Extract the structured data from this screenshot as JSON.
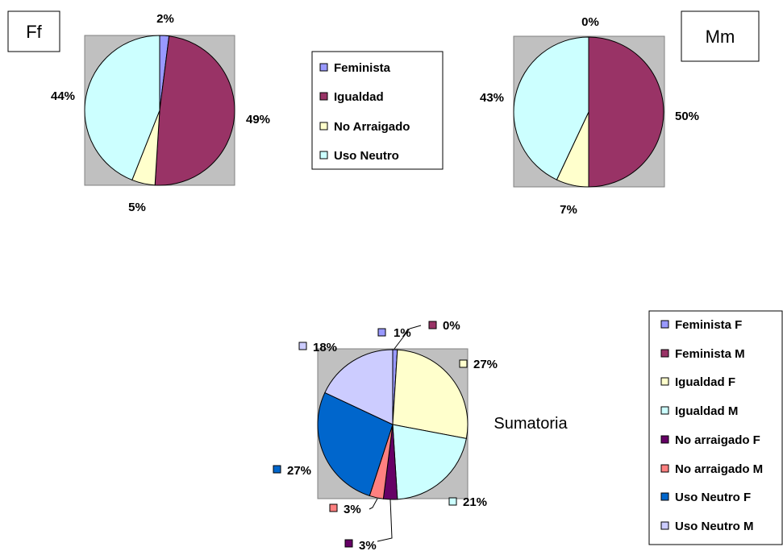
{
  "colors": {
    "feminista": "#9999ff",
    "igualdad": "#993366",
    "no_arraigado": "#ffffcc",
    "uso_neutro": "#ccffff",
    "feminista_f": "#9999ff",
    "feminista_m": "#993366",
    "igualdad_f": "#ffffcc",
    "igualdad_m": "#ccffff",
    "no_arraigado_f": "#660066",
    "no_arraigado_m": "#ff8080",
    "uso_neutro_f": "#0066cc",
    "uso_neutro_m": "#ccccff",
    "plot_area": "#c0c0c0"
  },
  "chart_data": [
    {
      "type": "pie",
      "title": "Ff",
      "categories": [
        "Feminista",
        "Igualdad",
        "No Arraigado",
        "Uso Neutro"
      ],
      "values": [
        2,
        49,
        5,
        44
      ],
      "labels": [
        "2%",
        "49%",
        "5%",
        "44%"
      ],
      "legend_position": "right"
    },
    {
      "type": "pie",
      "title": "Mm",
      "categories": [
        "Feminista",
        "Igualdad",
        "No Arraigado",
        "Uso Neutro"
      ],
      "values": [
        0,
        50,
        7,
        43
      ],
      "labels": [
        "0%",
        "50%",
        "7%",
        "43%"
      ]
    },
    {
      "type": "pie",
      "title": "Sumatoria",
      "categories": [
        "Feminista F",
        "Feminista M",
        "Igualdad F",
        "Igualdad M",
        "No arraigado F",
        "No arraigado M",
        "Uso Neutro F",
        "Uso Neutro M"
      ],
      "values": [
        1,
        0,
        27,
        21,
        3,
        3,
        27,
        18
      ],
      "labels": [
        "1%",
        "0%",
        "27%",
        "21%",
        "3%",
        "3%",
        "27%",
        "18%"
      ],
      "legend_position": "right"
    }
  ]
}
